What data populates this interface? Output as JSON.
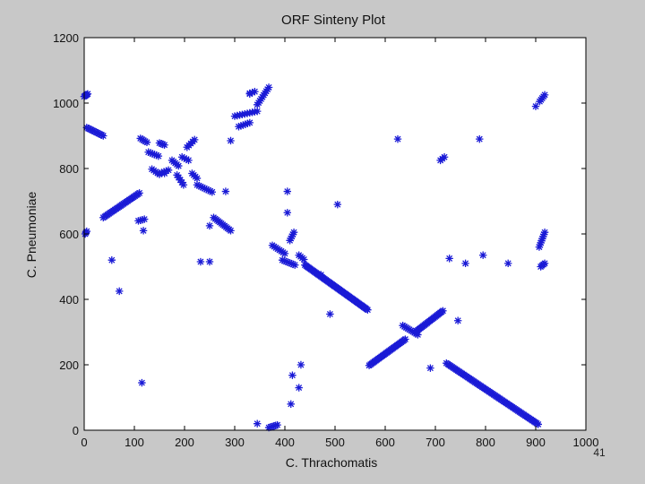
{
  "slide_number": "41",
  "colors": {
    "background": "#c8c8c8",
    "plot_area": "#ffffff",
    "marker": "#1a1ad6",
    "axis": "#000000"
  },
  "chart_data": {
    "type": "scatter",
    "title": "ORF Sinteny Plot",
    "xlabel": "C. Thrachomatis",
    "ylabel": "C. Pneumoniae",
    "xlim": [
      0,
      1000
    ],
    "ylim": [
      0,
      1200
    ],
    "xticks": [
      0,
      100,
      200,
      300,
      400,
      500,
      600,
      700,
      800,
      900,
      1000
    ],
    "yticks": [
      0,
      200,
      400,
      600,
      800,
      1000,
      1200
    ],
    "grid": false,
    "marker_symbol": "*",
    "segments": [
      {
        "x": [
          0,
          7
        ],
        "y": [
          1020,
          1028
        ],
        "count": 5
      },
      {
        "x": [
          2,
          5
        ],
        "y": [
          600,
          608
        ],
        "count": 3
      },
      {
        "x": [
          5,
          38
        ],
        "y": [
          925,
          900
        ],
        "count": 12
      },
      {
        "x": [
          38,
          110
        ],
        "y": [
          650,
          725
        ],
        "count": 26
      },
      {
        "x": [
          108,
          120
        ],
        "y": [
          640,
          645
        ],
        "count": 4
      },
      {
        "x": [
          112,
          125
        ],
        "y": [
          892,
          880
        ],
        "count": 5
      },
      {
        "x": [
          128,
          148
        ],
        "y": [
          850,
          838
        ],
        "count": 6
      },
      {
        "x": [
          135,
          150
        ],
        "y": [
          798,
          782
        ],
        "count": 5
      },
      {
        "x": [
          150,
          160
        ],
        "y": [
          878,
          872
        ],
        "count": 4
      },
      {
        "x": [
          150,
          168
        ],
        "y": [
          785,
          795
        ],
        "count": 5
      },
      {
        "x": [
          175,
          188
        ],
        "y": [
          825,
          808
        ],
        "count": 5
      },
      {
        "x": [
          185,
          198
        ],
        "y": [
          780,
          750
        ],
        "count": 5
      },
      {
        "x": [
          195,
          208
        ],
        "y": [
          835,
          825
        ],
        "count": 4
      },
      {
        "x": [
          205,
          220
        ],
        "y": [
          865,
          888
        ],
        "count": 5
      },
      {
        "x": [
          215,
          225
        ],
        "y": [
          785,
          770
        ],
        "count": 4
      },
      {
        "x": [
          225,
          255
        ],
        "y": [
          750,
          728
        ],
        "count": 9
      },
      {
        "x": [
          258,
          292
        ],
        "y": [
          650,
          610
        ],
        "count": 12
      },
      {
        "x": [
          300,
          345
        ],
        "y": [
          960,
          975
        ],
        "count": 10
      },
      {
        "x": [
          308,
          330
        ],
        "y": [
          928,
          940
        ],
        "count": 6
      },
      {
        "x": [
          345,
          368
        ],
        "y": [
          995,
          1048
        ],
        "count": 10
      },
      {
        "x": [
          330,
          340
        ],
        "y": [
          1030,
          1035
        ],
        "count": 3
      },
      {
        "x": [
          368,
          385
        ],
        "y": [
          8,
          16
        ],
        "count": 6
      },
      {
        "x": [
          375,
          400
        ],
        "y": [
          565,
          540
        ],
        "count": 8
      },
      {
        "x": [
          395,
          420
        ],
        "y": [
          520,
          505
        ],
        "count": 8
      },
      {
        "x": [
          410,
          418
        ],
        "y": [
          580,
          605
        ],
        "count": 5
      },
      {
        "x": [
          428,
          438
        ],
        "y": [
          535,
          522
        ],
        "count": 4
      },
      {
        "x": [
          440,
          565
        ],
        "y": [
          505,
          368
        ],
        "count": 52
      },
      {
        "x": [
          568,
          640
        ],
        "y": [
          198,
          278
        ],
        "count": 28
      },
      {
        "x": [
          635,
          665
        ],
        "y": [
          320,
          292
        ],
        "count": 10
      },
      {
        "x": [
          660,
          715
        ],
        "y": [
          300,
          365
        ],
        "count": 22
      },
      {
        "x": [
          710,
          718
        ],
        "y": [
          825,
          835
        ],
        "count": 3
      },
      {
        "x": [
          722,
          905
        ],
        "y": [
          205,
          18
        ],
        "count": 65
      },
      {
        "x": [
          908,
          918
        ],
        "y": [
          1005,
          1025
        ],
        "count": 5
      },
      {
        "x": [
          907,
          918
        ],
        "y": [
          560,
          605
        ],
        "count": 8
      },
      {
        "x": [
          910,
          918
        ],
        "y": [
          500,
          510
        ],
        "count": 4
      }
    ],
    "points": [
      {
        "x": 55,
        "y": 520
      },
      {
        "x": 70,
        "y": 425
      },
      {
        "x": 115,
        "y": 145
      },
      {
        "x": 118,
        "y": 610
      },
      {
        "x": 160,
        "y": 785
      },
      {
        "x": 232,
        "y": 515
      },
      {
        "x": 250,
        "y": 515
      },
      {
        "x": 250,
        "y": 625
      },
      {
        "x": 282,
        "y": 730
      },
      {
        "x": 292,
        "y": 885
      },
      {
        "x": 330,
        "y": 1028
      },
      {
        "x": 345,
        "y": 20
      },
      {
        "x": 405,
        "y": 665
      },
      {
        "x": 405,
        "y": 730
      },
      {
        "x": 412,
        "y": 80
      },
      {
        "x": 415,
        "y": 168
      },
      {
        "x": 428,
        "y": 130
      },
      {
        "x": 432,
        "y": 200
      },
      {
        "x": 472,
        "y": 475
      },
      {
        "x": 490,
        "y": 355
      },
      {
        "x": 505,
        "y": 690
      },
      {
        "x": 625,
        "y": 890
      },
      {
        "x": 690,
        "y": 190
      },
      {
        "x": 728,
        "y": 525
      },
      {
        "x": 745,
        "y": 335
      },
      {
        "x": 760,
        "y": 510
      },
      {
        "x": 788,
        "y": 890
      },
      {
        "x": 795,
        "y": 535
      },
      {
        "x": 845,
        "y": 510
      },
      {
        "x": 900,
        "y": 990
      }
    ]
  }
}
